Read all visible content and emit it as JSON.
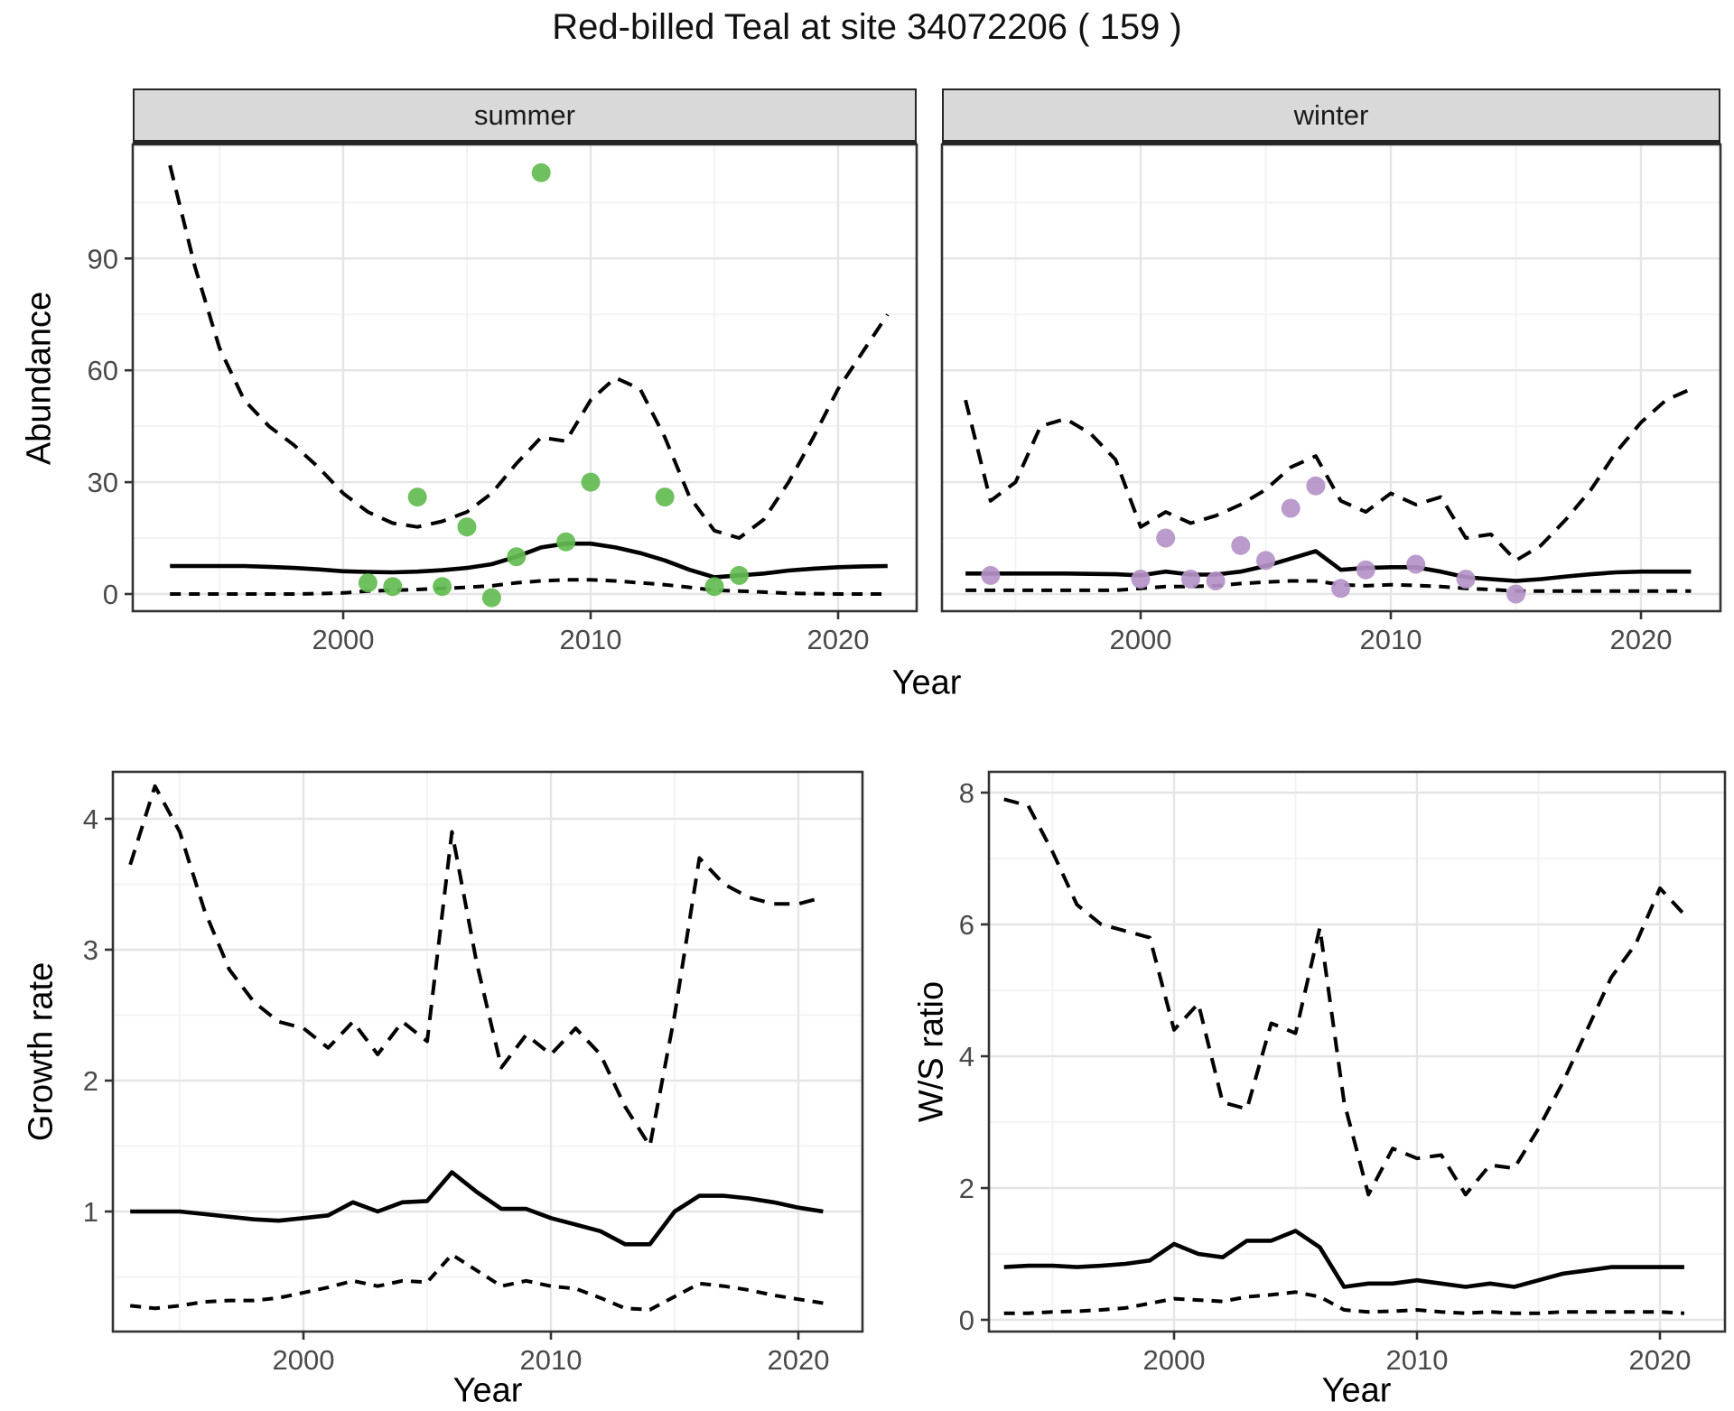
{
  "title": "Red-billed Teal at site 34072206 ( 159 )",
  "colors": {
    "summer_point": "#63bc51",
    "winter_point": "#b593c7",
    "line": "#000000",
    "grid_major": "#e5e5e5",
    "grid_minor": "#f2f2f2",
    "panel_border": "#333333",
    "strip_bg": "#d9d9d9",
    "axis_text": "#4a4a4a"
  },
  "top_chart": {
    "facets": [
      "summer",
      "winter"
    ],
    "ylabel": "Abundance",
    "xlabel": "Year",
    "yticks": [
      0,
      30,
      60,
      90
    ],
    "xticks": [
      2000,
      2010,
      2020
    ]
  },
  "bottom_left": {
    "ylabel": "Growth rate",
    "xlabel": "Year",
    "yticks": [
      1,
      2,
      3,
      4
    ],
    "xticks": [
      2000,
      2010,
      2020
    ]
  },
  "bottom_right": {
    "ylabel": "W/S ratio",
    "xlabel": "Year",
    "yticks": [
      0,
      2,
      4,
      6,
      8
    ],
    "xticks": [
      2000,
      2010,
      2020
    ]
  },
  "chart_data": [
    {
      "id": "abundance_summer",
      "type": "line",
      "title": "summer",
      "xlabel": "Year",
      "ylabel": "Abundance",
      "x": [
        1993,
        1994,
        1995,
        1996,
        1997,
        1998,
        1999,
        2000,
        2001,
        2002,
        2003,
        2004,
        2005,
        2006,
        2007,
        2008,
        2009,
        2010,
        2011,
        2012,
        2013,
        2014,
        2015,
        2016,
        2017,
        2018,
        2019,
        2020,
        2021,
        2022
      ],
      "xlim": [
        1991.8,
        2023.5
      ],
      "ylim": [
        -6,
        120
      ],
      "grid": true,
      "series": [
        {
          "name": "upper_ci",
          "style": "dashed",
          "values": [
            115,
            88,
            66,
            52,
            45,
            40,
            34,
            27,
            22,
            19,
            18,
            19.5,
            22,
            27,
            35,
            42,
            41,
            52,
            58,
            55,
            42,
            26,
            17,
            15,
            20,
            30,
            42,
            55,
            65,
            75
          ]
        },
        {
          "name": "median_fit",
          "style": "solid",
          "values": [
            7.5,
            7.5,
            7.5,
            7.5,
            7.3,
            7,
            6.6,
            6.1,
            5.9,
            5.8,
            6,
            6.4,
            7,
            8,
            10,
            12.5,
            13.5,
            13.5,
            12.5,
            11,
            9,
            6.5,
            4.5,
            5,
            5.5,
            6.3,
            6.8,
            7.2,
            7.4,
            7.5
          ]
        },
        {
          "name": "lower_ci",
          "style": "dashed",
          "values": [
            0,
            0,
            0,
            0,
            0,
            0,
            0.1,
            0.3,
            0.8,
            1,
            1.2,
            1.5,
            1.8,
            2.2,
            3,
            3.5,
            3.8,
            3.8,
            3.5,
            3,
            2.5,
            1.8,
            1,
            0.8,
            0.5,
            0.2,
            0.1,
            0,
            0,
            0
          ]
        }
      ],
      "points": {
        "name": "observed_counts",
        "color_key": "summer_point",
        "xy": [
          [
            2001,
            3
          ],
          [
            2002,
            2
          ],
          [
            2003,
            26
          ],
          [
            2004,
            2
          ],
          [
            2005,
            18
          ],
          [
            2006,
            -1
          ],
          [
            2007,
            10
          ],
          [
            2008,
            113
          ],
          [
            2009,
            14
          ],
          [
            2010,
            30
          ],
          [
            2013,
            26
          ],
          [
            2015,
            2
          ],
          [
            2016,
            5
          ]
        ]
      }
    },
    {
      "id": "abundance_winter",
      "type": "line",
      "title": "winter",
      "xlabel": "Year",
      "ylabel": "Abundance",
      "x": [
        1993,
        1994,
        1995,
        1996,
        1997,
        1998,
        1999,
        2000,
        2001,
        2002,
        2003,
        2004,
        2005,
        2006,
        2007,
        2008,
        2009,
        2010,
        2011,
        2012,
        2013,
        2014,
        2015,
        2016,
        2017,
        2018,
        2019,
        2020,
        2021,
        2022
      ],
      "xlim": [
        1991.8,
        2023.5
      ],
      "ylim": [
        -6,
        120
      ],
      "grid": true,
      "series": [
        {
          "name": "upper_ci",
          "style": "dashed",
          "values": [
            52,
            25,
            30,
            45,
            47,
            43,
            36,
            18,
            22,
            19,
            21,
            24,
            28,
            34,
            37,
            25,
            22,
            27,
            24,
            26,
            15,
            16,
            9,
            13,
            20,
            28,
            38,
            46,
            52,
            55
          ]
        },
        {
          "name": "median_fit",
          "style": "solid",
          "values": [
            5.5,
            5.5,
            5.5,
            5.5,
            5.5,
            5.4,
            5.3,
            5,
            6,
            5.2,
            5.2,
            6,
            7.5,
            9.5,
            11.5,
            6.5,
            7,
            7.2,
            7.2,
            6,
            4.5,
            4,
            3.5,
            4,
            4.7,
            5.3,
            5.8,
            6,
            6,
            6
          ]
        },
        {
          "name": "lower_ci",
          "style": "dashed",
          "values": [
            1,
            1,
            1,
            1,
            1,
            1,
            1,
            1.5,
            2,
            2,
            2.2,
            2.8,
            3.2,
            3.5,
            3.5,
            2.5,
            2.2,
            2.5,
            2.3,
            2,
            1.5,
            1.2,
            0.8,
            0.8,
            0.8,
            0.8,
            0.8,
            0.8,
            0.8,
            0.8
          ]
        }
      ],
      "points": {
        "name": "observed_counts",
        "color_key": "winter_point",
        "xy": [
          [
            1994,
            5
          ],
          [
            2000,
            4
          ],
          [
            2001,
            15
          ],
          [
            2002,
            4
          ],
          [
            2003,
            3.5
          ],
          [
            2004,
            13
          ],
          [
            2005,
            9
          ],
          [
            2006,
            23
          ],
          [
            2007,
            29
          ],
          [
            2008,
            1.5
          ],
          [
            2009,
            6.5
          ],
          [
            2011,
            8
          ],
          [
            2013,
            4
          ],
          [
            2015,
            0
          ]
        ]
      }
    },
    {
      "id": "growth_rate",
      "type": "line",
      "title": "",
      "xlabel": "Year",
      "ylabel": "Growth rate",
      "x": [
        1993,
        1994,
        1995,
        1996,
        1997,
        1998,
        1999,
        2000,
        2001,
        2002,
        2003,
        2004,
        2005,
        2006,
        2007,
        2008,
        2009,
        2010,
        2011,
        2012,
        2013,
        2014,
        2015,
        2016,
        2017,
        2018,
        2019,
        2020,
        2021
      ],
      "xlim": [
        1992.3,
        2022.6
      ],
      "ylim": [
        0.08,
        4.36
      ],
      "grid": true,
      "series": [
        {
          "name": "upper_ci",
          "style": "dashed",
          "values": [
            3.65,
            4.25,
            3.9,
            3.3,
            2.85,
            2.6,
            2.45,
            2.4,
            2.25,
            2.45,
            2.2,
            2.45,
            2.3,
            3.9,
            2.9,
            2.1,
            2.35,
            2.2,
            2.4,
            2.2,
            1.8,
            1.5,
            2.5,
            3.7,
            3.5,
            3.4,
            3.35,
            3.35,
            3.4
          ]
        },
        {
          "name": "median_fit",
          "style": "solid",
          "values": [
            1,
            1,
            1,
            0.98,
            0.96,
            0.94,
            0.93,
            0.95,
            0.97,
            1.07,
            1,
            1.07,
            1.08,
            1.3,
            1.15,
            1.02,
            1.02,
            0.95,
            0.9,
            0.85,
            0.75,
            0.75,
            1,
            1.12,
            1.12,
            1.1,
            1.07,
            1.03,
            1
          ]
        },
        {
          "name": "lower_ci",
          "style": "dashed",
          "values": [
            0.28,
            0.26,
            0.28,
            0.31,
            0.32,
            0.32,
            0.34,
            0.38,
            0.42,
            0.47,
            0.43,
            0.47,
            0.46,
            0.67,
            0.55,
            0.43,
            0.47,
            0.43,
            0.41,
            0.34,
            0.26,
            0.25,
            0.35,
            0.45,
            0.43,
            0.4,
            0.36,
            0.33,
            0.3
          ]
        }
      ],
      "points": null
    },
    {
      "id": "ws_ratio",
      "type": "line",
      "title": "",
      "xlabel": "Year",
      "ylabel": "W/S ratio",
      "x": [
        1993,
        1994,
        1995,
        1996,
        1997,
        1998,
        1999,
        2000,
        2001,
        2002,
        2003,
        2004,
        2005,
        2006,
        2007,
        2008,
        2009,
        2010,
        2011,
        2012,
        2013,
        2014,
        2015,
        2016,
        2017,
        2018,
        2019,
        2020,
        2021
      ],
      "xlim": [
        1992.3,
        2022.6
      ],
      "ylim": [
        -0.18,
        8.4
      ],
      "grid": true,
      "series": [
        {
          "name": "upper_ci",
          "style": "dashed",
          "values": [
            7.9,
            7.8,
            7.1,
            6.3,
            6,
            5.9,
            5.8,
            4.4,
            4.8,
            3.3,
            3.2,
            4.5,
            4.35,
            5.95,
            3.3,
            1.9,
            2.6,
            2.45,
            2.5,
            1.9,
            2.35,
            2.3,
            2.9,
            3.6,
            4.4,
            5.2,
            5.7,
            6.55,
            6.15
          ]
        },
        {
          "name": "median_fit",
          "style": "solid",
          "values": [
            0.8,
            0.82,
            0.82,
            0.8,
            0.82,
            0.85,
            0.9,
            1.15,
            1,
            0.95,
            1.2,
            1.2,
            1.35,
            1.1,
            0.5,
            0.55,
            0.55,
            0.6,
            0.55,
            0.5,
            0.55,
            0.5,
            0.6,
            0.7,
            0.75,
            0.8,
            0.8,
            0.8,
            0.8
          ]
        },
        {
          "name": "lower_ci",
          "style": "dashed",
          "values": [
            0.1,
            0.1,
            0.12,
            0.13,
            0.15,
            0.18,
            0.25,
            0.32,
            0.3,
            0.28,
            0.35,
            0.38,
            0.42,
            0.35,
            0.15,
            0.12,
            0.13,
            0.15,
            0.12,
            0.1,
            0.12,
            0.1,
            0.1,
            0.12,
            0.12,
            0.12,
            0.12,
            0.12,
            0.1
          ]
        }
      ],
      "points": null
    }
  ]
}
